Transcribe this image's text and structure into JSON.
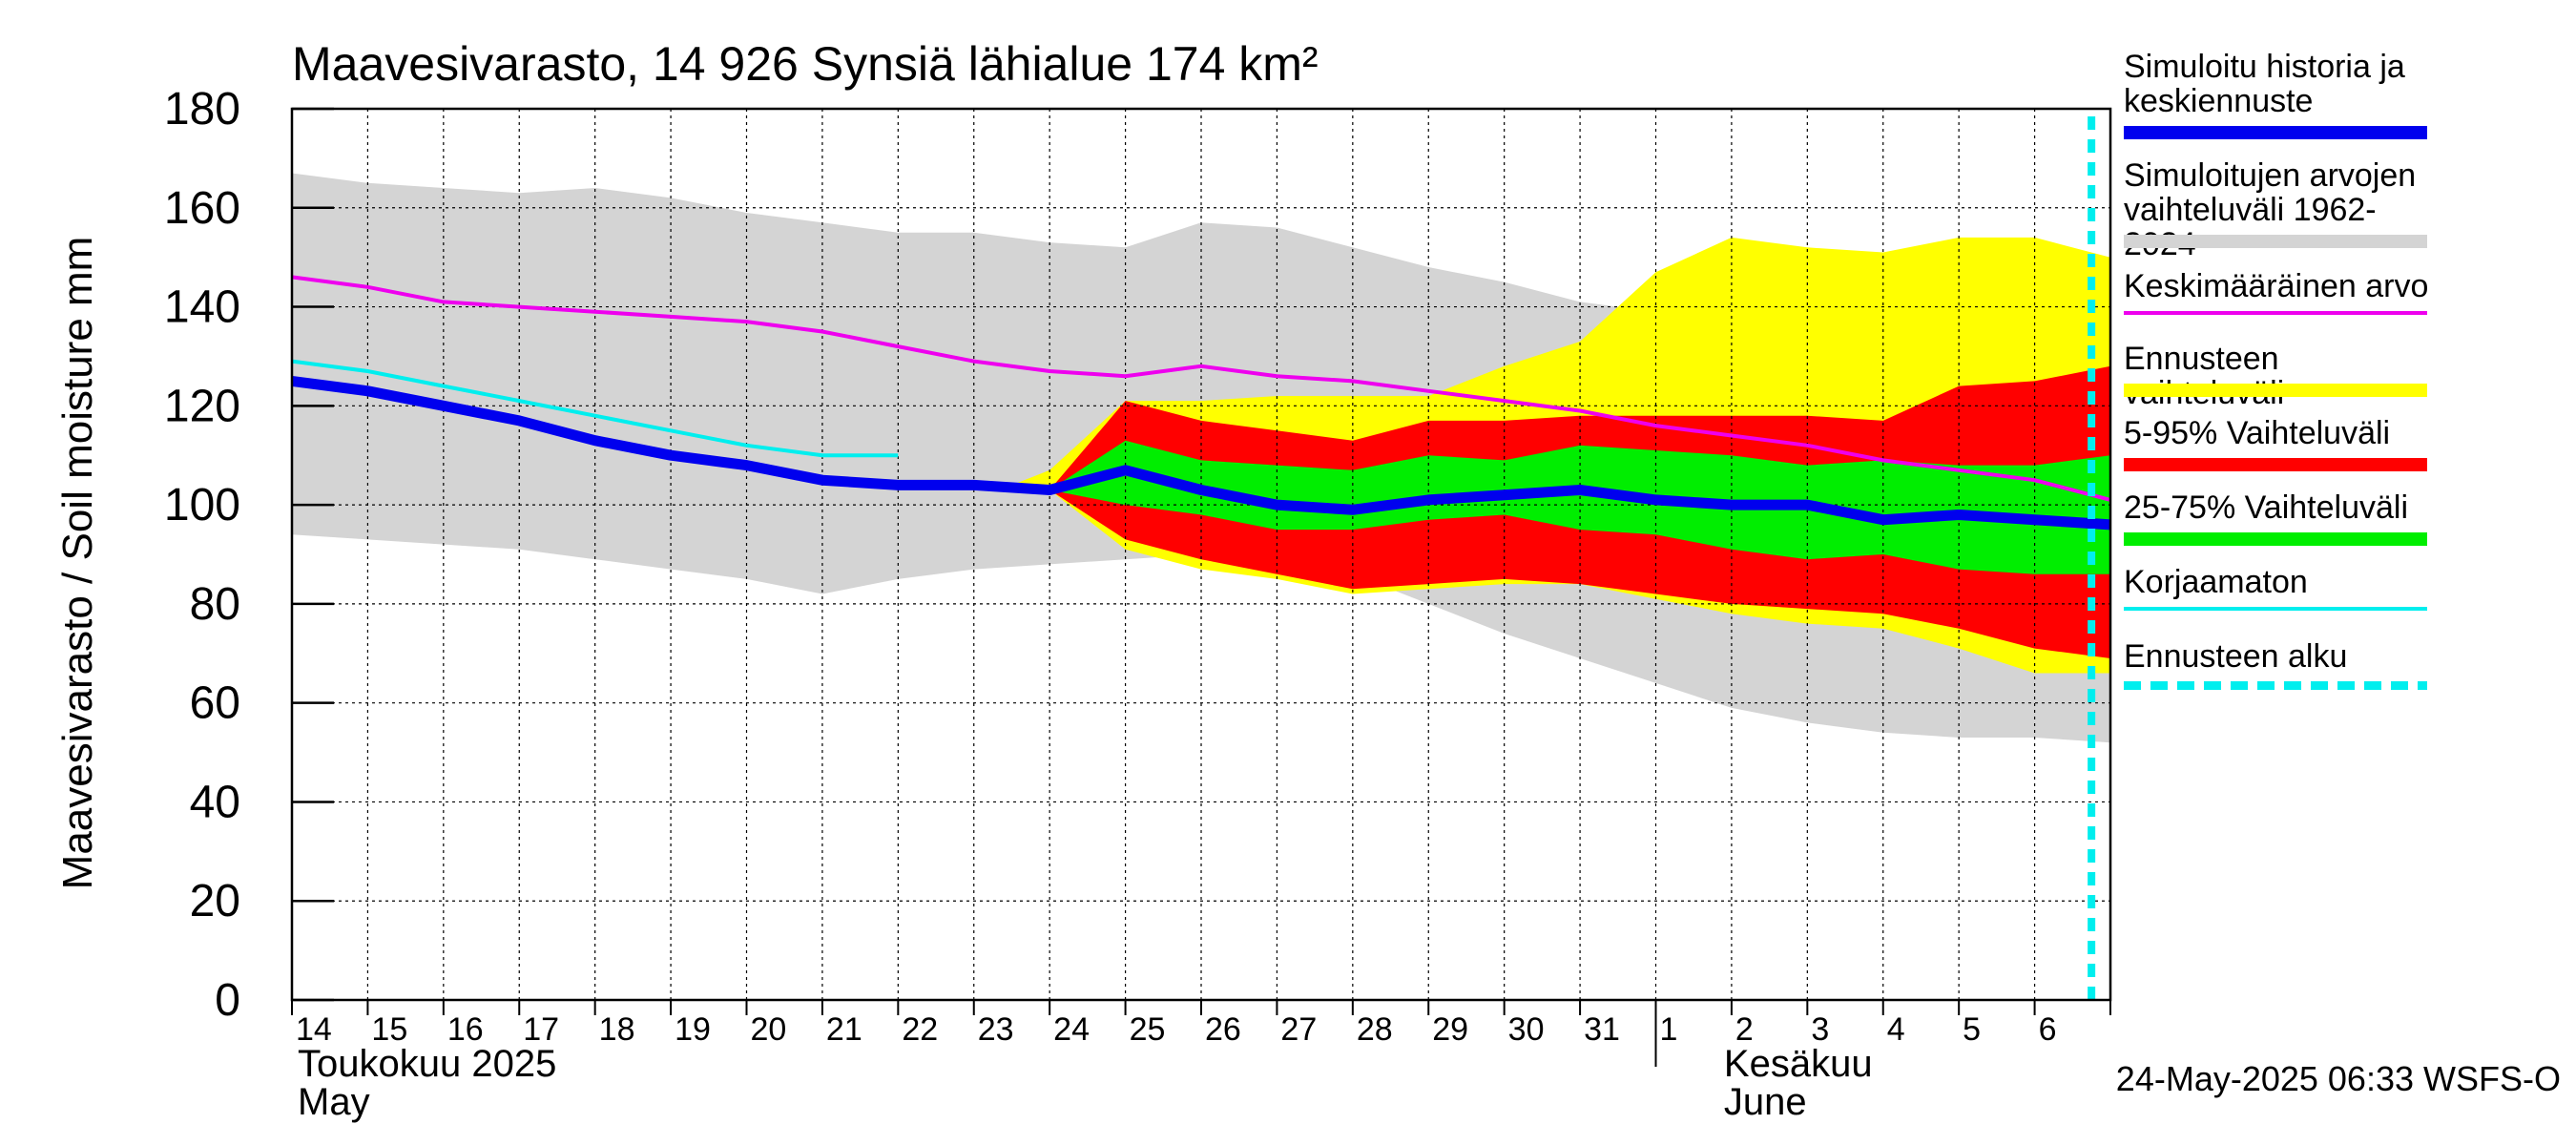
{
  "chart_data": {
    "type": "area",
    "title": "Maavesivarasto, 14 926 Synsiä lähialue 174 km²",
    "ylabel": "Maavesivarasto / Soil moisture   mm",
    "ylim": [
      0,
      180
    ],
    "yticks": [
      0,
      20,
      40,
      60,
      80,
      100,
      120,
      140,
      160,
      180
    ],
    "x_days": [
      "14",
      "15",
      "16",
      "17",
      "18",
      "19",
      "20",
      "21",
      "22",
      "23",
      "24",
      "25",
      "26",
      "27",
      "28",
      "29",
      "30",
      "31",
      "1",
      "2",
      "3",
      "4",
      "5",
      "6"
    ],
    "month_labels": [
      {
        "line1": "Toukokuu  2025",
        "line2": "May"
      },
      {
        "line1": "Kesäkuu",
        "line2": "June"
      }
    ],
    "forecast_start": 23.75,
    "series": [
      {
        "name": "hist_range",
        "x": [
          0,
          1,
          2,
          3,
          4,
          5,
          6,
          7,
          8,
          9,
          10,
          11,
          12,
          13,
          14,
          15,
          16,
          17,
          18,
          19,
          20,
          21,
          22,
          23,
          24
        ],
        "upper": [
          167,
          165,
          164,
          163,
          164,
          162,
          159,
          157,
          155,
          155,
          153,
          152,
          157,
          156,
          152,
          148,
          145,
          141,
          139,
          137,
          135,
          136,
          138,
          140,
          142
        ],
        "lower": [
          94,
          93,
          92,
          91,
          89,
          87,
          85,
          82,
          85,
          87,
          88,
          89,
          90,
          90,
          86,
          80,
          74,
          69,
          64,
          59,
          56,
          54,
          53,
          53,
          52
        ]
      },
      {
        "name": "forecast_range",
        "x": [
          9.5,
          10,
          11,
          12,
          13,
          14,
          15,
          16,
          17,
          18,
          19,
          20,
          21,
          22,
          23,
          24
        ],
        "upper": [
          104,
          107,
          121,
          121,
          122,
          122,
          122,
          128,
          133,
          147,
          154,
          152,
          151,
          154,
          154,
          150
        ],
        "lower": [
          104,
          103,
          91,
          87,
          85,
          82,
          83,
          84,
          84,
          81,
          78,
          76,
          75,
          71,
          66,
          66
        ]
      },
      {
        "name": "p5_95",
        "x": [
          10,
          11,
          12,
          13,
          14,
          15,
          16,
          17,
          18,
          19,
          20,
          21,
          22,
          23,
          24
        ],
        "upper": [
          103,
          121,
          117,
          115,
          113,
          117,
          117,
          118,
          118,
          118,
          118,
          117,
          124,
          125,
          128
        ],
        "lower": [
          103,
          93,
          89,
          86,
          83,
          84,
          85,
          84,
          82,
          80,
          79,
          78,
          75,
          71,
          69
        ]
      },
      {
        "name": "p25_75",
        "x": [
          10,
          11,
          12,
          13,
          14,
          15,
          16,
          17,
          18,
          19,
          20,
          21,
          22,
          23,
          24
        ],
        "upper": [
          103,
          113,
          109,
          108,
          107,
          110,
          109,
          112,
          111,
          110,
          108,
          109,
          108,
          108,
          110
        ],
        "lower": [
          103,
          100,
          98,
          95,
          95,
          97,
          98,
          95,
          94,
          91,
          89,
          90,
          87,
          86,
          86
        ]
      },
      {
        "name": "mean",
        "x": [
          0,
          1,
          2,
          3,
          4,
          5,
          6,
          7,
          8,
          9,
          10,
          11,
          12,
          13,
          14,
          15,
          16,
          17,
          18,
          19,
          20,
          21,
          22,
          23,
          24
        ],
        "values": [
          146,
          144,
          141,
          140,
          139,
          138,
          137,
          135,
          132,
          129,
          127,
          126,
          128,
          126,
          125,
          123,
          121,
          119,
          116,
          114,
          112,
          109,
          107,
          105,
          101
        ]
      },
      {
        "name": "uncorrected",
        "x": [
          0,
          1,
          2,
          3,
          4,
          5,
          6,
          7,
          8
        ],
        "values": [
          129,
          127,
          124,
          121,
          118,
          115,
          112,
          110,
          110
        ]
      },
      {
        "name": "history_forecast",
        "x": [
          0,
          1,
          2,
          3,
          4,
          5,
          6,
          7,
          8,
          9,
          10,
          11,
          12,
          13,
          14,
          15,
          16,
          17,
          18,
          19,
          20,
          21,
          22,
          23,
          24
        ],
        "values": [
          125,
          123,
          120,
          117,
          113,
          110,
          108,
          105,
          104,
          104,
          103,
          107,
          103,
          100,
          99,
          101,
          102,
          103,
          101,
          100,
          100,
          97,
          98,
          97,
          96
        ]
      }
    ],
    "legend": [
      {
        "label": "Simuloitu historia ja\nkeskiennuste",
        "color": "#0000ee",
        "style": "thick"
      },
      {
        "label": "Simuloitujen arvojen\nvaihteluväli 1962-2024",
        "color": "#d4d4d4",
        "style": "band"
      },
      {
        "label": "Keskimääräinen arvo",
        "color": "#ee00ee",
        "style": "thin"
      },
      {
        "label": "Ennusteen vaihteluväli",
        "color": "#ffff00",
        "style": "band"
      },
      {
        "label": "5-95% Vaihteluväli",
        "color": "#ff0000",
        "style": "band"
      },
      {
        "label": "25-75% Vaihteluväli",
        "color": "#00ee00",
        "style": "band"
      },
      {
        "label": "Korjaamaton",
        "color": "#00eeee",
        "style": "thin"
      },
      {
        "label": "Ennusteen alku",
        "color": "#00eeee",
        "style": "dashed"
      }
    ]
  },
  "footer": "24-May-2025 06:33 WSFS-O"
}
